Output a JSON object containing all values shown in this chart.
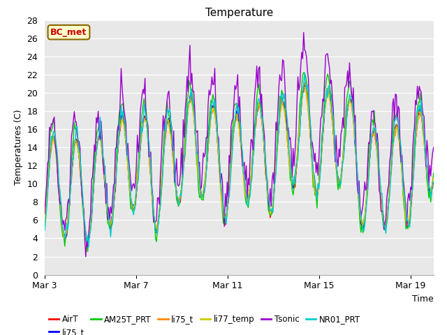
{
  "title": "Temperature",
  "xlabel": "Time",
  "ylabel": "Temperatures (C)",
  "ylim": [
    0,
    28
  ],
  "yticks": [
    0,
    2,
    4,
    6,
    8,
    10,
    12,
    14,
    16,
    18,
    20,
    22,
    24,
    26,
    28
  ],
  "plot_bg_color": "#e8e8e8",
  "legend_entries_row1": [
    "AirT",
    "li75_t",
    "AM25T_PRT",
    "li75_t",
    "li77_temp",
    "Tsonic"
  ],
  "legend_entries_row2": [
    "NR01_PRT"
  ],
  "legend_colors": [
    "#ff0000",
    "#0000ff",
    "#00cc00",
    "#ff8800",
    "#cccc00",
    "#9900cc",
    "#00cccc"
  ],
  "series_colors": [
    "#ff0000",
    "#0000ff",
    "#00cc00",
    "#ff8800",
    "#cccc00",
    "#9900cc",
    "#00cccc"
  ],
  "x_tick_labels": [
    "Mar 3",
    "Mar 7",
    "Mar 11",
    "Mar 15",
    "Mar 19"
  ],
  "x_tick_positions": [
    0,
    4,
    8,
    12,
    16
  ],
  "n_days": 17,
  "annotation_text": "BC_met",
  "annotation_color": "#cc0000",
  "annotation_bg": "#ffffcc",
  "line_width": 1.0
}
